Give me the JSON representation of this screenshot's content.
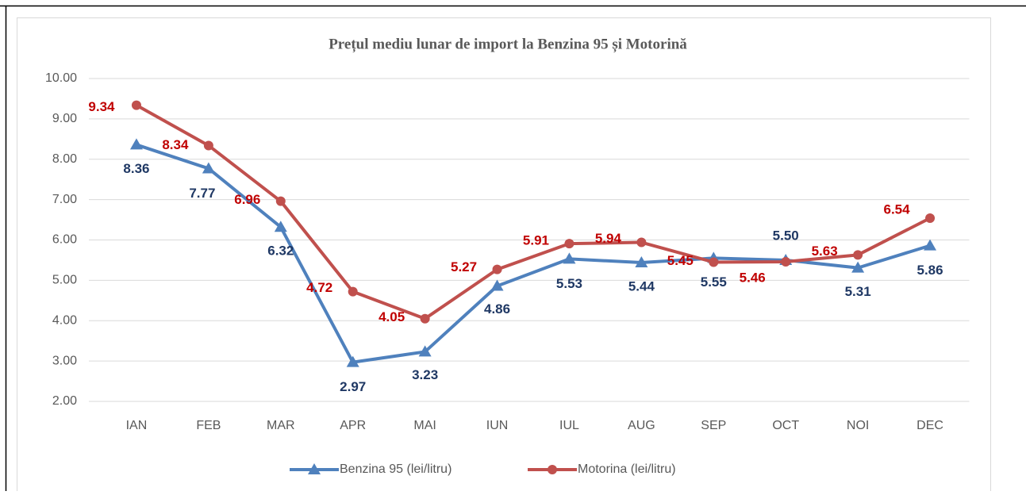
{
  "chart_data": {
    "type": "line",
    "title": "Prețul mediu lunar de import la Benzina 95 și Motorină",
    "categories": [
      "IAN",
      "FEB",
      "MAR",
      "APR",
      "MAI",
      "IUN",
      "IUL",
      "AUG",
      "SEP",
      "OCT",
      "NOI",
      "DEC"
    ],
    "series": [
      {
        "name": "Benzina 95 (lei/litru)",
        "color": "#4f81bd",
        "label_color": "#1f3864",
        "marker": "triangle",
        "values": [
          8.36,
          7.77,
          6.32,
          2.97,
          3.23,
          4.86,
          5.53,
          5.44,
          5.55,
          5.5,
          5.31,
          5.86
        ],
        "value_labels": [
          "8.36",
          "7.77",
          "6.32",
          "2.97",
          "3.23",
          "4.86",
          "5.53",
          "5.44",
          "5.55",
          "5.50",
          "5.31",
          "5.86"
        ]
      },
      {
        "name": "Motorina (lei/litru)",
        "color": "#c0504d",
        "label_color": "#c00000",
        "marker": "circle",
        "values": [
          9.34,
          8.34,
          6.96,
          4.72,
          4.05,
          5.27,
          5.91,
          5.94,
          5.45,
          5.46,
          5.63,
          6.54
        ],
        "value_labels": [
          "9.34",
          "8.34",
          "6.96",
          "4.72",
          "4.05",
          "5.27",
          "5.91",
          "5.94",
          "5.45",
          "5.46",
          "5.63",
          "6.54"
        ]
      }
    ],
    "ylim": [
      2,
      10
    ],
    "yticks": [
      {
        "value": 2,
        "label": "2.00"
      },
      {
        "value": 3,
        "label": "3.00"
      },
      {
        "value": 4,
        "label": "4.00"
      },
      {
        "value": 5,
        "label": "5.00"
      },
      {
        "value": 6,
        "label": "6.00"
      },
      {
        "value": 7,
        "label": "7.00"
      },
      {
        "value": 8,
        "label": "8.00"
      },
      {
        "value": 9,
        "label": "9.00"
      },
      {
        "value": 10,
        "label": "10.00"
      }
    ],
    "grid": true,
    "legend": "bottom"
  }
}
